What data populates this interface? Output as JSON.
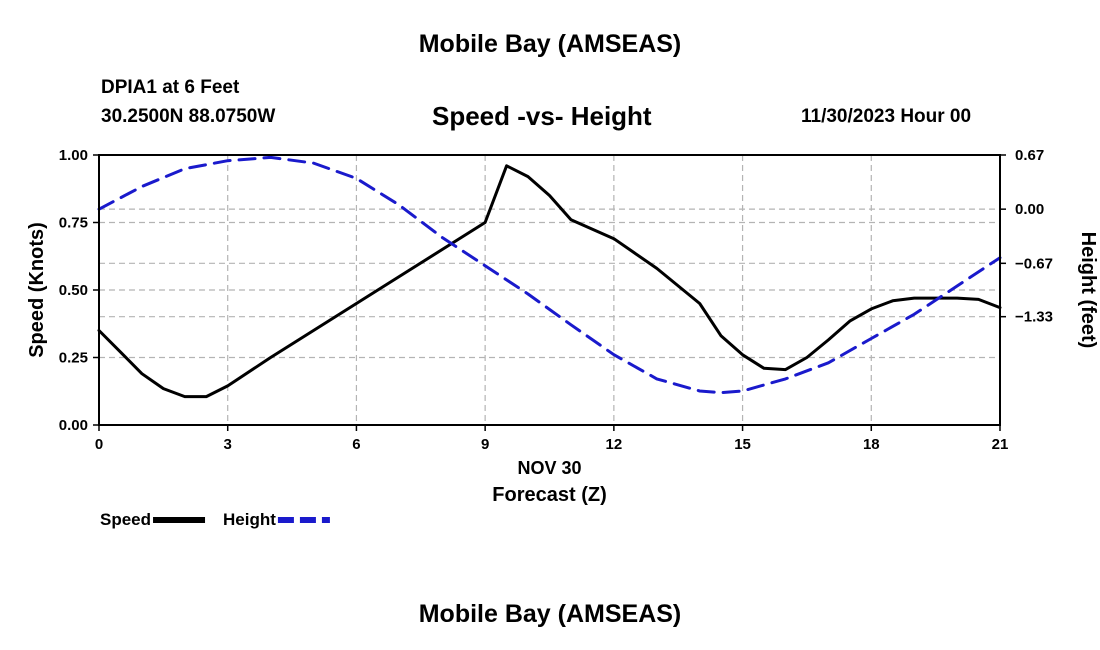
{
  "header": {
    "title": "Mobile Bay (AMSEAS)",
    "station": "DPIA1 at 6 Feet",
    "coordinates": "30.2500N  88.0750W",
    "chart_title": "Speed -vs- Height",
    "datetime": "11/30/2023 Hour 00"
  },
  "footer": {
    "title": "Mobile Bay (AMSEAS)"
  },
  "colors": {
    "speed": "#000000",
    "height": "#1a1acc",
    "grid": "#b4b4b4"
  },
  "chart_data": {
    "type": "line",
    "xlabel": "Forecast (Z)",
    "xsublabel": "NOV 30",
    "ylabel": "Speed (Knots)",
    "y2label": "Height (feet)",
    "xlim": [
      0,
      21
    ],
    "ylim": [
      0,
      1.0
    ],
    "y2lim": [
      -2.67,
      0.67
    ],
    "x_ticks": [
      0,
      3,
      6,
      9,
      12,
      15,
      18,
      21
    ],
    "x_tick_labels": [
      "0",
      "3",
      "6",
      "9",
      "12",
      "15",
      "18",
      "21"
    ],
    "y_ticks": [
      0,
      0.25,
      0.5,
      0.75,
      1.0
    ],
    "y_tick_labels": [
      "0.00",
      "0.25",
      "0.50",
      "0.75",
      "1.00"
    ],
    "y2_ticks": [
      0.67,
      0.0,
      -0.67,
      -1.33
    ],
    "y2_tick_labels": [
      "0.67",
      "0.00",
      "−0.67",
      "−1.33"
    ],
    "series": [
      {
        "name": "Speed",
        "axis": "left",
        "style": "solid",
        "x": [
          0,
          0.5,
          1,
          1.5,
          2,
          2.5,
          3,
          4,
          5,
          6,
          7,
          8,
          9,
          9.5,
          10,
          10.5,
          11,
          12,
          13,
          14,
          14.5,
          15,
          15.5,
          16,
          16.5,
          17,
          17.5,
          18,
          18.5,
          19,
          19.5,
          20,
          20.5,
          21
        ],
        "y": [
          0.35,
          0.27,
          0.19,
          0.135,
          0.105,
          0.105,
          0.145,
          0.25,
          0.35,
          0.45,
          0.55,
          0.65,
          0.75,
          0.96,
          0.92,
          0.85,
          0.76,
          0.69,
          0.58,
          0.45,
          0.33,
          0.26,
          0.21,
          0.205,
          0.25,
          0.315,
          0.385,
          0.43,
          0.46,
          0.47,
          0.47,
          0.47,
          0.465,
          0.435
        ]
      },
      {
        "name": "Height",
        "axis": "right",
        "style": "dashed",
        "x": [
          0,
          1,
          2,
          3,
          4,
          5,
          6,
          7,
          8,
          9,
          10,
          11,
          12,
          13,
          14,
          14.5,
          15,
          16,
          17,
          18,
          19,
          20,
          21
        ],
        "y": [
          0.0,
          0.28,
          0.5,
          0.6,
          0.64,
          0.57,
          0.38,
          0.05,
          -0.35,
          -0.7,
          -1.05,
          -1.43,
          -1.8,
          -2.1,
          -2.25,
          -2.27,
          -2.25,
          -2.1,
          -1.9,
          -1.6,
          -1.3,
          -0.95,
          -0.6
        ]
      }
    ],
    "legend": [
      {
        "label": "Speed",
        "series": "Speed"
      },
      {
        "label": "Height",
        "series": "Height"
      }
    ]
  }
}
